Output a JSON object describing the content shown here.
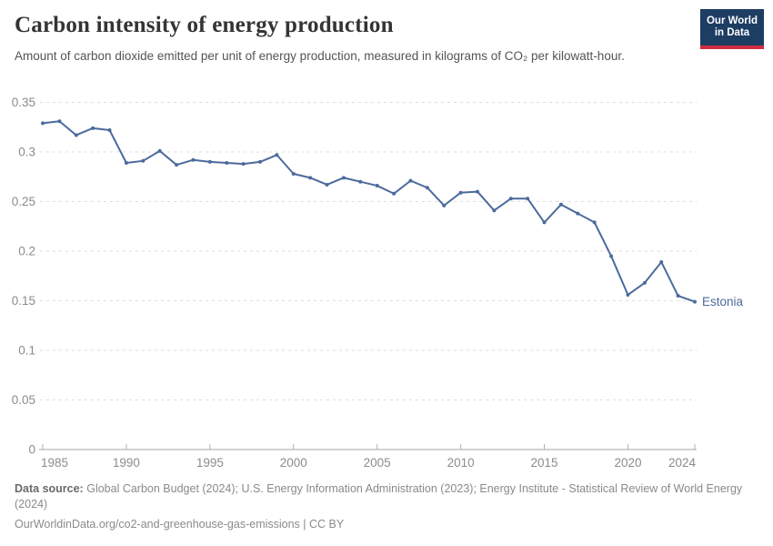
{
  "header": {
    "title": "Carbon intensity of energy production",
    "subtitle": "Amount of carbon dioxide emitted per unit of energy production, measured in kilograms of CO₂ per kilowatt-hour.",
    "logo": {
      "line1": "Our World",
      "line2": "in Data",
      "bg_color": "#1d3d63",
      "bar_color": "#d12d41"
    }
  },
  "chart_data": {
    "type": "line",
    "title": "Carbon intensity of energy production",
    "entity": "Estonia",
    "unit": "kilograms of CO₂ per kilowatt-hour",
    "x": [
      1985,
      1986,
      1987,
      1988,
      1989,
      1990,
      1991,
      1992,
      1993,
      1994,
      1995,
      1996,
      1997,
      1998,
      1999,
      2000,
      2001,
      2002,
      2003,
      2004,
      2005,
      2006,
      2007,
      2008,
      2009,
      2010,
      2011,
      2012,
      2013,
      2014,
      2015,
      2016,
      2017,
      2018,
      2019,
      2020,
      2021,
      2022,
      2023,
      2024
    ],
    "values": [
      0.329,
      0.331,
      0.317,
      0.324,
      0.322,
      0.289,
      0.291,
      0.301,
      0.287,
      0.292,
      0.29,
      0.289,
      0.288,
      0.29,
      0.297,
      0.278,
      0.274,
      0.267,
      0.274,
      0.27,
      0.266,
      0.258,
      0.271,
      0.264,
      0.246,
      0.259,
      0.26,
      0.241,
      0.253,
      0.253,
      0.229,
      0.247,
      0.238,
      0.229,
      0.195,
      0.156,
      0.168,
      0.189,
      0.155,
      0.149
    ],
    "xlim": [
      1985,
      2024
    ],
    "ylim": [
      0,
      0.35
    ],
    "y_ticks": [
      0,
      0.05,
      0.1,
      0.15,
      0.2,
      0.25,
      0.3,
      0.35
    ],
    "x_ticks": [
      1985,
      1990,
      1995,
      2000,
      2005,
      2010,
      2015,
      2020,
      2024
    ],
    "grid": true,
    "legend_position": "end-of-line-label",
    "line_color": "#4C6A9C",
    "grid_color": "#dedede",
    "axis_color": "#a5a5a5",
    "tick_color": "#b0b0b0",
    "tick_label_color": "#8c8c8c"
  },
  "footer": {
    "source_label": "Data source:",
    "source_text": "Global Carbon Budget (2024); U.S. Energy Information Administration (2023); Energy Institute - Statistical Review of World Energy (2024)",
    "link_text": "OurWorldinData.org/co2-and-greenhouse-gas-emissions | CC BY"
  }
}
